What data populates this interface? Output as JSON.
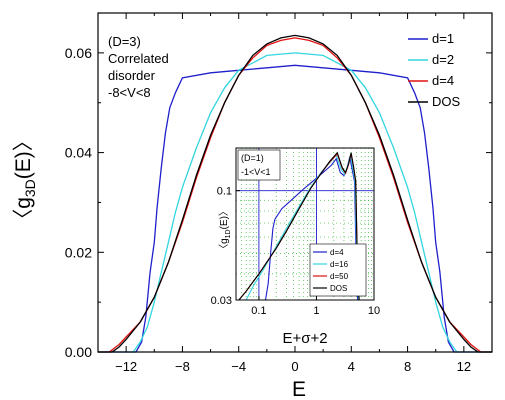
{
  "chart_data": [
    {
      "type": "line",
      "ylabel_parts": {
        "pre": "〈g",
        "sub": "3D",
        "post": "(E)〉"
      },
      "xlabel": "E",
      "xlim": [
        -14,
        14
      ],
      "ylim": [
        0,
        0.068
      ],
      "xticks": [
        -12,
        -8,
        -4,
        0,
        4,
        8,
        12
      ],
      "yticks": [
        0.0,
        0.02,
        0.04,
        0.06
      ],
      "ytick_labels": [
        "0.00",
        "0.02",
        "0.04",
        "0.06"
      ],
      "grid": false,
      "legend": "top-right",
      "annotation": [
        "(D=3)",
        "Correlated",
        "disorder",
        "-8<V<8"
      ],
      "series": [
        {
          "name": "d=1",
          "color": "#1f1fcc",
          "points": [
            [
              -14,
              0
            ],
            [
              -11.3,
              0
            ],
            [
              -10.9,
              0.002
            ],
            [
              -10.6,
              0.007
            ],
            [
              -10.3,
              0.016
            ],
            [
              -10.0,
              0.022
            ],
            [
              -9.8,
              0.029
            ],
            [
              -9.5,
              0.037
            ],
            [
              -9.2,
              0.044
            ],
            [
              -8.9,
              0.049
            ],
            [
              -8.5,
              0.052
            ],
            [
              -8,
              0.055
            ],
            [
              -6,
              0.056
            ],
            [
              -4,
              0.0565
            ],
            [
              -2,
              0.057
            ],
            [
              0,
              0.0575
            ],
            [
              2,
              0.057
            ],
            [
              4,
              0.0565
            ],
            [
              6,
              0.056
            ],
            [
              8,
              0.055
            ],
            [
              8.5,
              0.052
            ],
            [
              8.9,
              0.049
            ],
            [
              9.2,
              0.044
            ],
            [
              9.5,
              0.037
            ],
            [
              9.8,
              0.029
            ],
            [
              10.0,
              0.022
            ],
            [
              10.3,
              0.016
            ],
            [
              10.6,
              0.007
            ],
            [
              10.9,
              0.002
            ],
            [
              11.3,
              0
            ],
            [
              14,
              0
            ]
          ]
        },
        {
          "name": "d=2",
          "color": "#33d6e0",
          "points": [
            [
              -14,
              0
            ],
            [
              -11.5,
              0
            ],
            [
              -11.0,
              0.002
            ],
            [
              -10.5,
              0.005
            ],
            [
              -10,
              0.01
            ],
            [
              -9.5,
              0.016
            ],
            [
              -9,
              0.022
            ],
            [
              -8.5,
              0.028
            ],
            [
              -8,
              0.033
            ],
            [
              -7,
              0.041
            ],
            [
              -6,
              0.048
            ],
            [
              -5,
              0.053
            ],
            [
              -4,
              0.0565
            ],
            [
              -2,
              0.0595
            ],
            [
              0,
              0.06
            ],
            [
              2,
              0.0595
            ],
            [
              4,
              0.0565
            ],
            [
              5,
              0.053
            ],
            [
              6,
              0.048
            ],
            [
              7,
              0.041
            ],
            [
              8,
              0.033
            ],
            [
              8.5,
              0.028
            ],
            [
              9,
              0.022
            ],
            [
              9.5,
              0.016
            ],
            [
              10,
              0.01
            ],
            [
              10.5,
              0.005
            ],
            [
              11.0,
              0.002
            ],
            [
              11.5,
              0
            ],
            [
              14,
              0
            ]
          ]
        },
        {
          "name": "d=4",
          "color": "#e01010",
          "points": [
            [
              -14,
              0
            ],
            [
              -13.2,
              0
            ],
            [
              -12.5,
              0.0015
            ],
            [
              -12,
              0.003
            ],
            [
              -11,
              0.006
            ],
            [
              -10,
              0.011
            ],
            [
              -9,
              0.018
            ],
            [
              -8,
              0.026
            ],
            [
              -7,
              0.035
            ],
            [
              -6,
              0.043
            ],
            [
              -5,
              0.05
            ],
            [
              -4,
              0.0555
            ],
            [
              -3,
              0.059
            ],
            [
              -2,
              0.0615
            ],
            [
              -1,
              0.0625
            ],
            [
              0,
              0.063
            ],
            [
              1,
              0.0625
            ],
            [
              2,
              0.0615
            ],
            [
              3,
              0.059
            ],
            [
              4,
              0.0555
            ],
            [
              5,
              0.05
            ],
            [
              6,
              0.043
            ],
            [
              7,
              0.035
            ],
            [
              8,
              0.026
            ],
            [
              9,
              0.018
            ],
            [
              10,
              0.011
            ],
            [
              11,
              0.006
            ],
            [
              12,
              0.003
            ],
            [
              12.5,
              0.0015
            ],
            [
              13.2,
              0
            ],
            [
              14,
              0
            ]
          ]
        },
        {
          "name": "DOS",
          "color": "#000000",
          "points": [
            [
              -14,
              0
            ],
            [
              -13.0,
              0
            ],
            [
              -12.5,
              0.001
            ],
            [
              -12,
              0.0025
            ],
            [
              -11,
              0.006
            ],
            [
              -10,
              0.011
            ],
            [
              -9,
              0.018
            ],
            [
              -8,
              0.0265
            ],
            [
              -7,
              0.0355
            ],
            [
              -6,
              0.0435
            ],
            [
              -5,
              0.05
            ],
            [
              -4,
              0.0555
            ],
            [
              -3,
              0.0595
            ],
            [
              -2,
              0.0618
            ],
            [
              -1,
              0.063
            ],
            [
              0,
              0.0635
            ],
            [
              1,
              0.063
            ],
            [
              2,
              0.0618
            ],
            [
              3,
              0.0595
            ],
            [
              4,
              0.0555
            ],
            [
              5,
              0.05
            ],
            [
              6,
              0.0435
            ],
            [
              7,
              0.0355
            ],
            [
              8,
              0.0265
            ],
            [
              9,
              0.018
            ],
            [
              10,
              0.011
            ],
            [
              11,
              0.006
            ],
            [
              12,
              0.0025
            ],
            [
              12.5,
              0.001
            ],
            [
              13.0,
              0
            ],
            [
              14,
              0
            ]
          ]
        }
      ]
    },
    {
      "type": "line",
      "xscale": "log",
      "yscale": "log",
      "ylabel_parts": {
        "pre": "〈g",
        "sub": "1D",
        "post": "(E)〉"
      },
      "xlabel": "E+σ+2",
      "xlim": [
        0.04,
        10
      ],
      "ylim": [
        0.03,
        0.16
      ],
      "xticks": [
        0.1,
        1,
        10
      ],
      "xtick_labels": [
        "0.1",
        "1",
        "10"
      ],
      "yticks": [
        0.03,
        0.1
      ],
      "ytick_labels": [
        "0.03",
        "0.1"
      ],
      "grid": true,
      "legend": "bottom-right",
      "annotation": [
        "(D=1)",
        "-1<V<1"
      ],
      "series": [
        {
          "name": "d=4",
          "color": "#1f1fcc",
          "points": [
            [
              0.1,
              0.03
            ],
            [
              0.13,
              0.03
            ],
            [
              0.145,
              0.036
            ],
            [
              0.16,
              0.05
            ],
            [
              0.175,
              0.066
            ],
            [
              0.19,
              0.073
            ],
            [
              0.25,
              0.082
            ],
            [
              0.4,
              0.092
            ],
            [
              0.6,
              0.102
            ],
            [
              0.9,
              0.112
            ],
            [
              1.3,
              0.122
            ],
            [
              1.8,
              0.132
            ],
            [
              2.2,
              0.142
            ],
            [
              2.6,
              0.122
            ],
            [
              3.0,
              0.118
            ],
            [
              3.4,
              0.128
            ],
            [
              3.8,
              0.145
            ],
            [
              4.2,
              0.125
            ],
            [
              4.6,
              0.11
            ],
            [
              4.9,
              0.045
            ],
            [
              5.2,
              0.03
            ]
          ]
        },
        {
          "name": "d=16",
          "color": "#33d6e0",
          "points": [
            [
              0.06,
              0.03
            ],
            [
              0.08,
              0.035
            ],
            [
              0.12,
              0.042
            ],
            [
              0.2,
              0.054
            ],
            [
              0.3,
              0.066
            ],
            [
              0.5,
              0.084
            ],
            [
              0.8,
              0.104
            ],
            [
              1.2,
              0.122
            ],
            [
              1.7,
              0.136
            ],
            [
              2.2,
              0.148
            ],
            [
              2.7,
              0.126
            ],
            [
              3.1,
              0.12
            ],
            [
              3.5,
              0.132
            ],
            [
              3.9,
              0.148
            ],
            [
              4.3,
              0.128
            ],
            [
              4.7,
              0.11
            ],
            [
              5.0,
              0.05
            ],
            [
              5.4,
              0.03
            ]
          ]
        },
        {
          "name": "d=50",
          "color": "#e01010",
          "points": [
            [
              0.045,
              0.03
            ],
            [
              0.06,
              0.033
            ],
            [
              0.1,
              0.04
            ],
            [
              0.2,
              0.053
            ],
            [
              0.3,
              0.064
            ],
            [
              0.5,
              0.082
            ],
            [
              0.8,
              0.103
            ],
            [
              1.2,
              0.121
            ],
            [
              1.7,
              0.137
            ],
            [
              2.3,
              0.15
            ],
            [
              2.8,
              0.128
            ],
            [
              3.2,
              0.121
            ],
            [
              3.6,
              0.133
            ],
            [
              4.0,
              0.15
            ],
            [
              4.4,
              0.13
            ],
            [
              4.8,
              0.11
            ],
            [
              5.1,
              0.05
            ],
            [
              5.5,
              0.03
            ]
          ]
        },
        {
          "name": "DOS",
          "color": "#000000",
          "points": [
            [
              0.045,
              0.03
            ],
            [
              0.06,
              0.033
            ],
            [
              0.1,
              0.04
            ],
            [
              0.2,
              0.053
            ],
            [
              0.3,
              0.064
            ],
            [
              0.5,
              0.082
            ],
            [
              0.8,
              0.103
            ],
            [
              1.2,
              0.121
            ],
            [
              1.7,
              0.138
            ],
            [
              2.3,
              0.152
            ],
            [
              2.8,
              0.129
            ],
            [
              3.2,
              0.122
            ],
            [
              3.6,
              0.134
            ],
            [
              4.0,
              0.152
            ],
            [
              4.4,
              0.131
            ],
            [
              4.8,
              0.111
            ],
            [
              5.1,
              0.05
            ],
            [
              5.5,
              0.03
            ]
          ]
        }
      ]
    }
  ]
}
